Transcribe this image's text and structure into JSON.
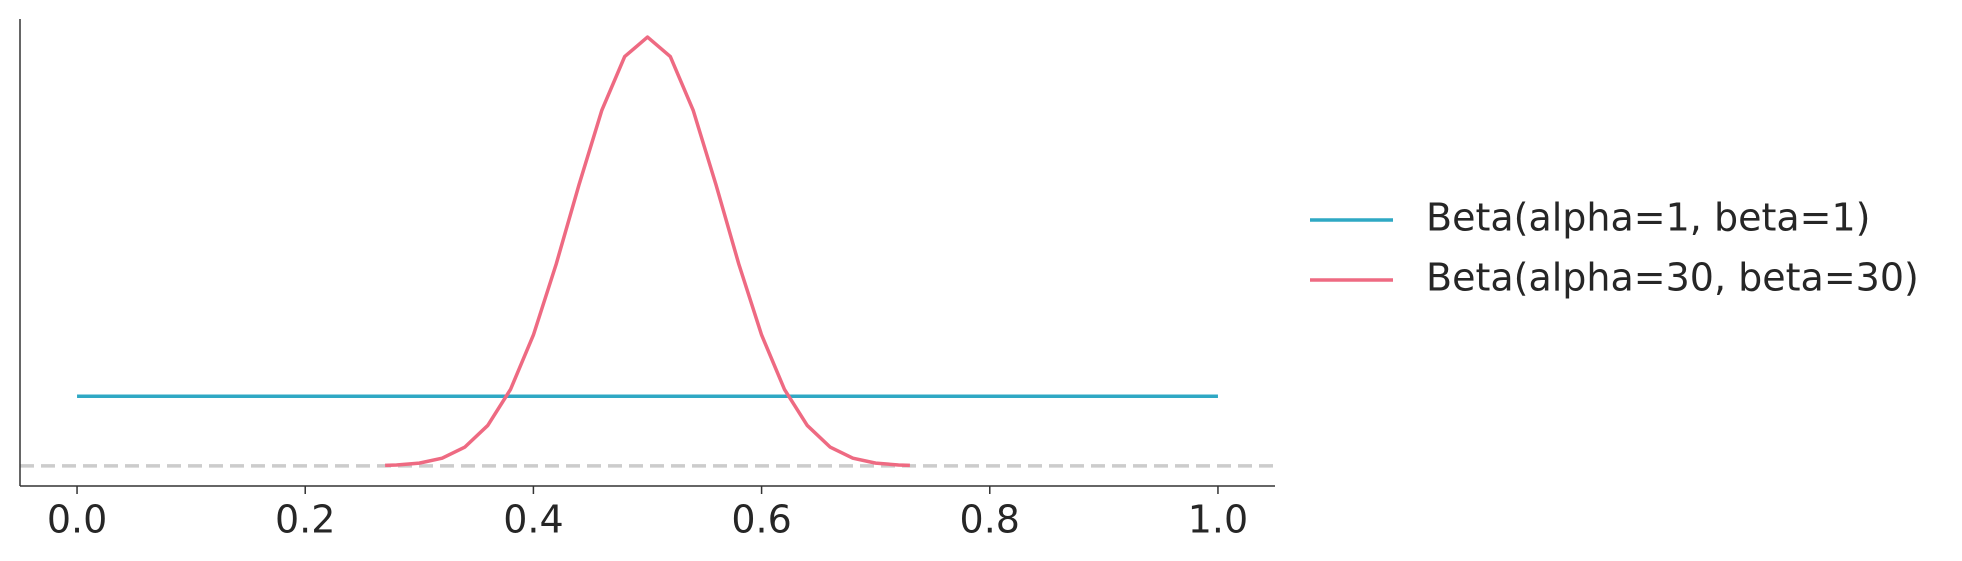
{
  "chart_data": {
    "type": "line",
    "series": [
      {
        "name": "Beta(alpha=1, beta=1)",
        "color": "#2fa8c4",
        "x": [
          0,
          1
        ],
        "values": [
          1,
          1
        ]
      },
      {
        "name": "Beta(alpha=30, beta=30)",
        "color": "#ee6a82",
        "x": [
          0.27,
          0.28,
          0.3,
          0.32,
          0.34,
          0.36,
          0.38,
          0.4,
          0.42,
          0.44,
          0.46,
          0.48,
          0.5,
          0.52,
          0.54,
          0.56,
          0.58,
          0.6,
          0.62,
          0.64,
          0.66,
          0.68,
          0.7,
          0.72,
          0.73
        ],
        "values": [
          0.0063,
          0.012,
          0.039,
          0.11,
          0.27,
          0.58,
          1.1,
          1.88,
          2.9,
          4.04,
          5.11,
          5.88,
          6.16,
          5.88,
          5.11,
          4.04,
          2.9,
          1.88,
          1.1,
          0.58,
          0.27,
          0.11,
          0.039,
          0.012,
          0.0063
        ]
      }
    ],
    "xlim": [
      -0.05,
      1.05
    ],
    "xticks": [
      {
        "value": 0,
        "label": "0.0"
      },
      0.2,
      0.4,
      0.6,
      0.8,
      {
        "value": 1,
        "label": "1.0"
      }
    ],
    "ylim": [
      -0.29,
      6.42
    ],
    "legend": "right"
  }
}
